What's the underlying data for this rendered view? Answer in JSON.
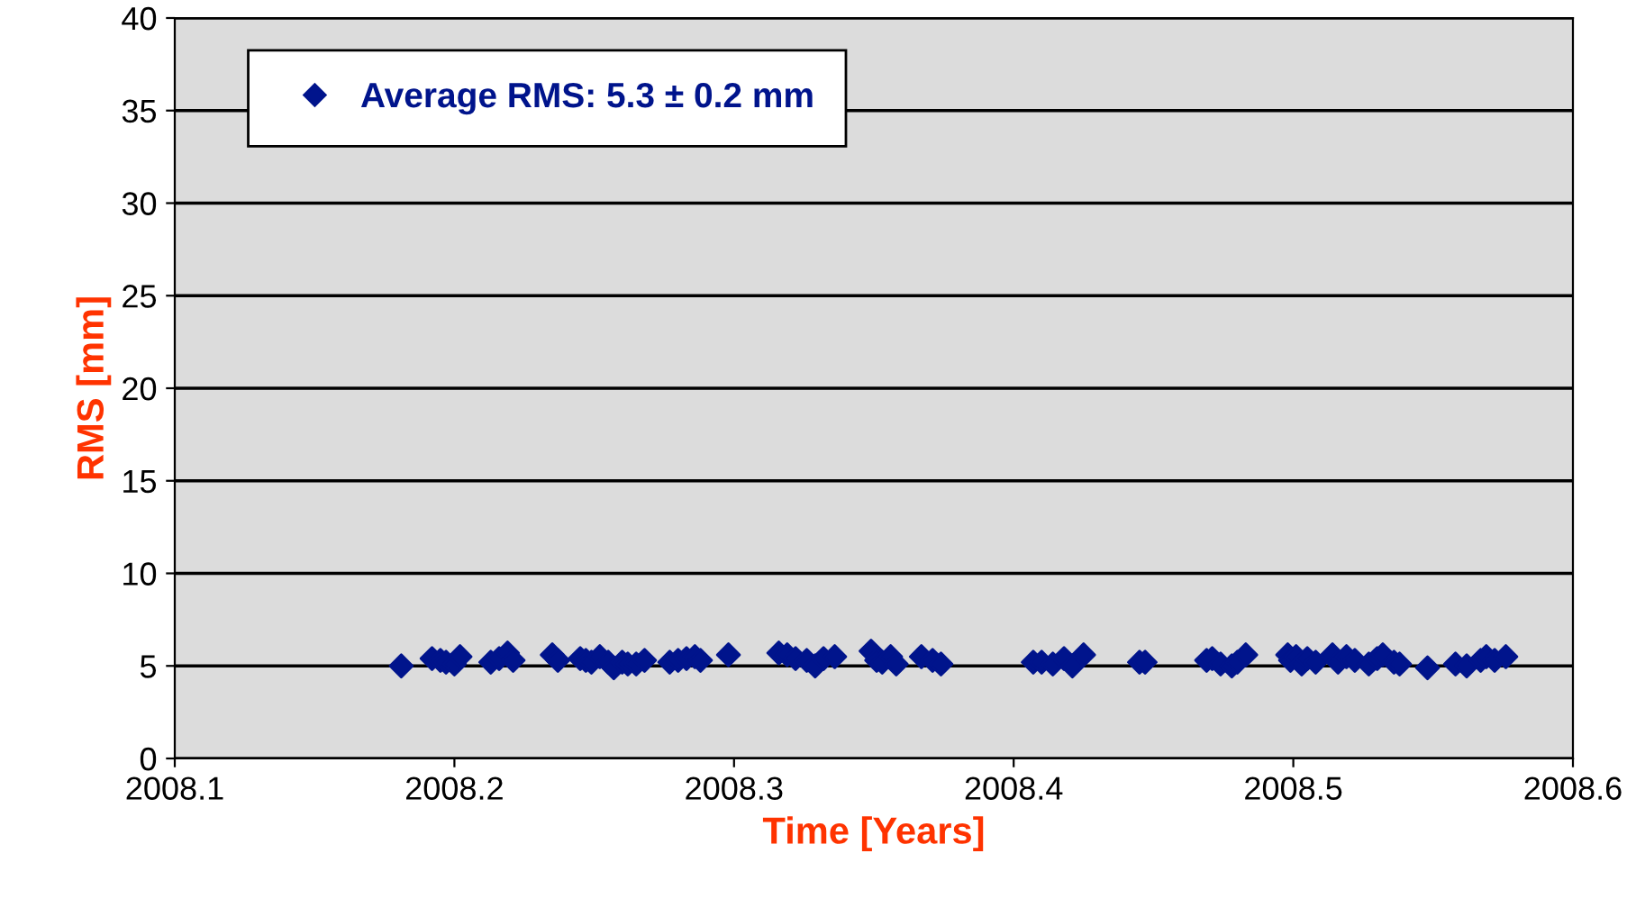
{
  "chart_data": {
    "type": "scatter",
    "xlabel": "Time [Years]",
    "ylabel": "RMS [mm]",
    "xlim": [
      2008.1,
      2008.6
    ],
    "xticks": [
      2008.1,
      2008.2,
      2008.3,
      2008.4,
      2008.5,
      2008.6
    ],
    "ylim": [
      0,
      40
    ],
    "yticks": [
      0,
      5,
      10,
      15,
      20,
      25,
      30,
      35,
      40
    ],
    "grid": "y",
    "legend": "top left",
    "marker": "diamond",
    "series": [
      {
        "name": "Average RMS: 5.3 ± 0.2 mm",
        "color": "#00148c",
        "x": [
          2008.181,
          2008.192,
          2008.195,
          2008.197,
          2008.2,
          2008.202,
          2008.213,
          2008.216,
          2008.219,
          2008.221,
          2008.235,
          2008.237,
          2008.245,
          2008.247,
          2008.249,
          2008.252,
          2008.255,
          2008.257,
          2008.26,
          2008.262,
          2008.265,
          2008.268,
          2008.277,
          2008.28,
          2008.283,
          2008.286,
          2008.288,
          2008.298,
          2008.316,
          2008.319,
          2008.322,
          2008.326,
          2008.329,
          2008.332,
          2008.336,
          2008.349,
          2008.351,
          2008.353,
          2008.356,
          2008.358,
          2008.367,
          2008.371,
          2008.374,
          2008.407,
          2008.41,
          2008.414,
          2008.418,
          2008.421,
          2008.425,
          2008.445,
          2008.447,
          2008.469,
          2008.471,
          2008.474,
          2008.478,
          2008.48,
          2008.483,
          2008.498,
          2008.499,
          2008.501,
          2008.503,
          2008.505,
          2008.508,
          2008.514,
          2008.516,
          2008.519,
          2008.522,
          2008.527,
          2008.53,
          2008.532,
          2008.536,
          2008.538,
          2008.548,
          2008.558,
          2008.562,
          2008.567,
          2008.569,
          2008.572,
          2008.576
        ],
        "values": [
          5.0,
          5.4,
          5.3,
          5.2,
          5.1,
          5.5,
          5.2,
          5.4,
          5.7,
          5.3,
          5.6,
          5.3,
          5.4,
          5.3,
          5.2,
          5.5,
          5.2,
          4.9,
          5.2,
          5.1,
          5.1,
          5.3,
          5.2,
          5.3,
          5.4,
          5.5,
          5.3,
          5.6,
          5.7,
          5.6,
          5.4,
          5.3,
          5.0,
          5.4,
          5.5,
          5.8,
          5.3,
          5.2,
          5.5,
          5.1,
          5.5,
          5.3,
          5.1,
          5.2,
          5.2,
          5.1,
          5.4,
          5.0,
          5.6,
          5.2,
          5.2,
          5.3,
          5.4,
          5.1,
          5.0,
          5.2,
          5.6,
          5.6,
          5.3,
          5.5,
          5.1,
          5.4,
          5.2,
          5.6,
          5.2,
          5.5,
          5.3,
          5.1,
          5.4,
          5.6,
          5.2,
          5.1,
          4.9,
          5.1,
          5.0,
          5.3,
          5.5,
          5.3,
          5.5
        ]
      }
    ]
  }
}
